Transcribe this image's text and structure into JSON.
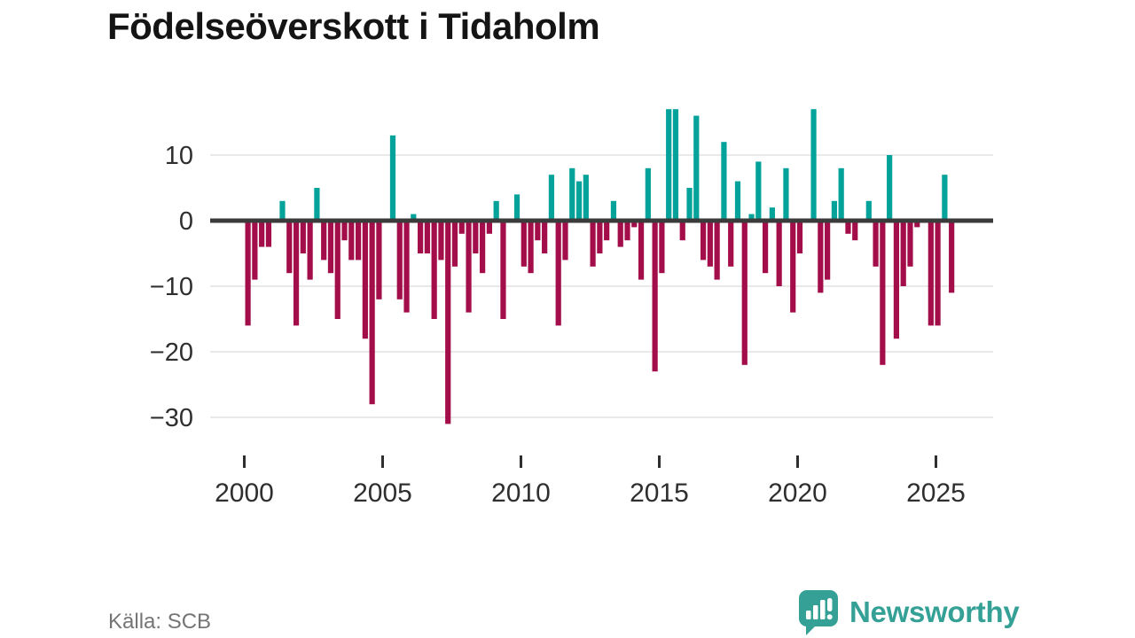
{
  "title": "Födelseöverskott i Tidaholm",
  "footer": {
    "source_label": "Källa: SCB",
    "brand": "Newsworthy"
  },
  "colors": {
    "positive_bar": "#03a29a",
    "negative_bar": "#a30d49",
    "axis_line": "#3b3b3b",
    "gridline": "#e9e9e9",
    "tick_label": "#2f2f2f",
    "muted_text": "#757575",
    "brand_teal": "#35a095",
    "logo_glyph": "#ffffff"
  },
  "chart_data": {
    "type": "bar",
    "title": "Födelseöverskott i Tidaholm",
    "x_tick_years": [
      2000,
      2005,
      2010,
      2015,
      2020,
      2025
    ],
    "y_ticks": [
      10,
      0,
      -10,
      -20,
      -30
    ],
    "ylim": [
      -33,
      18
    ],
    "grid": true,
    "legend": false,
    "start_quarter": "2000-Q1",
    "end_quarter": "2025-Q3",
    "series_by_year": [
      {
        "year": 2000,
        "values": [
          -16,
          -9,
          -4,
          -4
        ]
      },
      {
        "year": 2001,
        "values": [
          0,
          3,
          -8,
          -16
        ]
      },
      {
        "year": 2002,
        "values": [
          -5,
          -9,
          5,
          -6
        ]
      },
      {
        "year": 2003,
        "values": [
          -8,
          -15,
          -3,
          -6
        ]
      },
      {
        "year": 2004,
        "values": [
          -6,
          -18,
          -28,
          -12
        ]
      },
      {
        "year": 2005,
        "values": [
          0,
          13,
          -12,
          -14
        ]
      },
      {
        "year": 2006,
        "values": [
          1,
          -5,
          -5,
          -15
        ]
      },
      {
        "year": 2007,
        "values": [
          -6,
          -31,
          -7,
          -2
        ]
      },
      {
        "year": 2008,
        "values": [
          -14,
          -5,
          -8,
          -2
        ]
      },
      {
        "year": 2009,
        "values": [
          3,
          -15,
          0,
          4
        ]
      },
      {
        "year": 2010,
        "values": [
          -7,
          -8,
          -3,
          -5
        ]
      },
      {
        "year": 2011,
        "values": [
          7,
          -16,
          -6,
          8
        ]
      },
      {
        "year": 2012,
        "values": [
          6,
          7,
          -7,
          -5
        ]
      },
      {
        "year": 2013,
        "values": [
          -3,
          3,
          -4,
          -3
        ]
      },
      {
        "year": 2014,
        "values": [
          -1,
          -9,
          8,
          -23
        ]
      },
      {
        "year": 2015,
        "values": [
          -8,
          17,
          17,
          -3
        ]
      },
      {
        "year": 2016,
        "values": [
          5,
          16,
          -6,
          -7
        ]
      },
      {
        "year": 2017,
        "values": [
          -9,
          12,
          -7,
          6
        ]
      },
      {
        "year": 2018,
        "values": [
          -22,
          1,
          9,
          -8
        ]
      },
      {
        "year": 2019,
        "values": [
          2,
          -10,
          8,
          -14
        ]
      },
      {
        "year": 2020,
        "values": [
          -5,
          0,
          17,
          -11
        ]
      },
      {
        "year": 2021,
        "values": [
          -9,
          3,
          8,
          -2
        ]
      },
      {
        "year": 2022,
        "values": [
          -3,
          0,
          3,
          -7
        ]
      },
      {
        "year": 2023,
        "values": [
          -22,
          10,
          -18,
          -10
        ]
      },
      {
        "year": 2024,
        "values": [
          -7,
          -1,
          0,
          -16
        ]
      },
      {
        "year": 2025,
        "values": [
          -16,
          7,
          -11
        ]
      }
    ]
  }
}
